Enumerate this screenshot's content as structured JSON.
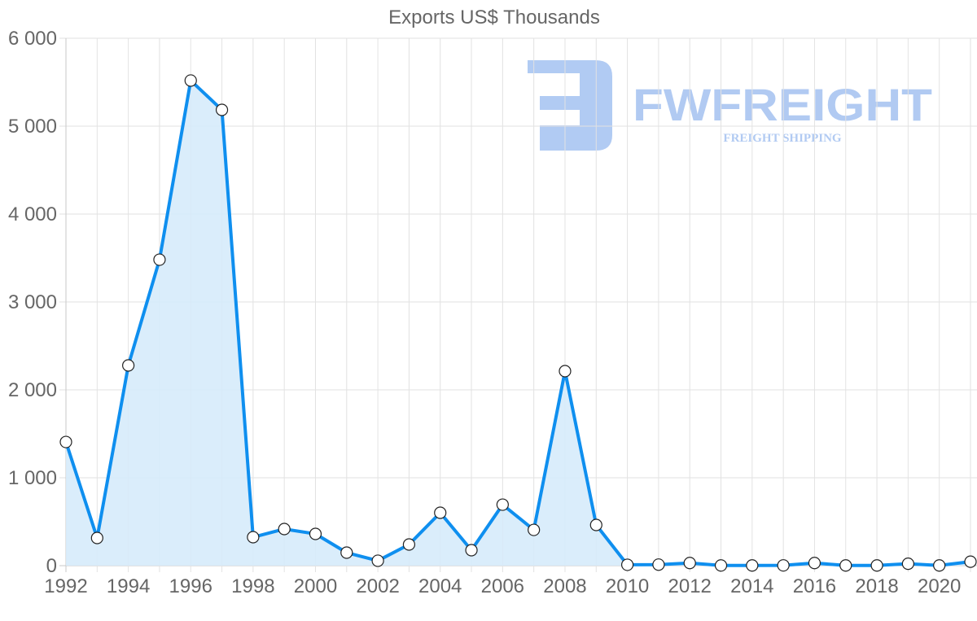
{
  "chart_data": {
    "type": "line",
    "title": "Exports US$ Thousands",
    "xlabel": "",
    "ylabel": "",
    "ylim": [
      0,
      6000
    ],
    "yticks": [
      "0",
      "1 000",
      "2 000",
      "3 000",
      "4 000",
      "5 000",
      "6 000"
    ],
    "xticks": [
      "1992",
      "1994",
      "1996",
      "1998",
      "2000",
      "2002",
      "2004",
      "2006",
      "2008",
      "2010",
      "2012",
      "2014",
      "2016",
      "2018",
      "2020"
    ],
    "grid": true,
    "fill": true,
    "categories": [
      1992,
      1993,
      1994,
      1995,
      1996,
      1997,
      1998,
      1999,
      2000,
      2001,
      2002,
      2003,
      2004,
      2005,
      2006,
      2007,
      2008,
      2009,
      2010,
      2011,
      2012,
      2013,
      2014,
      2015,
      2016,
      2017,
      2018,
      2019,
      2020,
      2021
    ],
    "series": [
      {
        "name": "Exports US$ Thousands",
        "color": "#0f8fef",
        "fill_color": "#d6ebfb",
        "values": [
          1407,
          315,
          2278,
          3481,
          5519,
          5185,
          324,
          417,
          361,
          148,
          56,
          241,
          602,
          176,
          694,
          407,
          2213,
          463,
          10,
          12,
          30,
          2,
          2,
          3,
          30,
          2,
          2,
          22,
          2,
          45
        ]
      }
    ]
  },
  "watermark": {
    "brand": "FWFREIGHT",
    "tagline": "FREIGHT SHIPPING",
    "color": "#adc8f2"
  }
}
